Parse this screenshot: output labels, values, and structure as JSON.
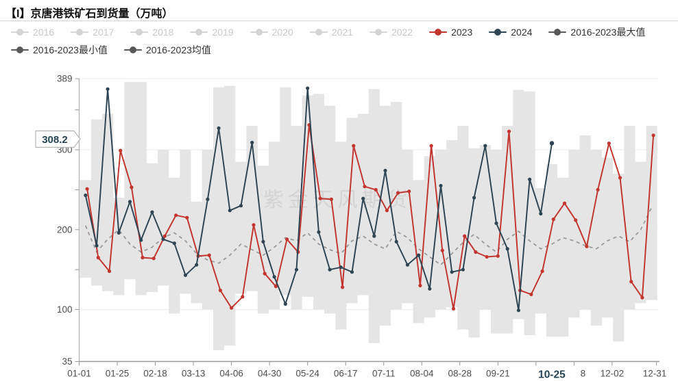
{
  "title": "【I】京唐港铁矿石到货量（万吨）",
  "watermark": "紫金天风期货",
  "colors": {
    "red_2023": "#c23531",
    "dark_2024": "#2f4554",
    "stat_grey": "#595959",
    "band_fill": "#e5e5e5",
    "mean_dash": "#9a9a9a",
    "inactive": "#d4d4d4",
    "grid": "#ebebeb",
    "axis": "#999999",
    "tick_text": "#4e4e4e",
    "pointer_text": "#274356"
  },
  "legend": {
    "items": [
      {
        "label": "2016",
        "active": false
      },
      {
        "label": "2017",
        "active": false
      },
      {
        "label": "2018",
        "active": false
      },
      {
        "label": "2019",
        "active": false
      },
      {
        "label": "2020",
        "active": false
      },
      {
        "label": "2021",
        "active": false
      },
      {
        "label": "2022",
        "active": false
      },
      {
        "label": "2023",
        "active": true,
        "color": "#c23531"
      },
      {
        "label": "2024",
        "active": true,
        "color": "#2f4554"
      },
      {
        "label": "2016-2023最大值",
        "active": true,
        "color": "#595959"
      },
      {
        "label": "2016-2023最小值",
        "active": true,
        "color": "#595959"
      },
      {
        "label": "2016-2023均值",
        "active": true,
        "color": "#595959"
      }
    ]
  },
  "axis_pointer": {
    "y_label": "308.2",
    "x_label": "10-25"
  },
  "chart_data": {
    "type": "line",
    "title": "京唐港铁矿石到货量（万吨）",
    "xlabel": "",
    "ylabel": "万吨",
    "ylim": [
      35,
      389
    ],
    "yticks": [
      35,
      100,
      200,
      300,
      389
    ],
    "y_minor_ticks": [
      150,
      250,
      350
    ],
    "grid": true,
    "legend_position": "top",
    "days_in_year": 365,
    "x_ticks": [
      {
        "day": 0,
        "label": "01-01"
      },
      {
        "day": 24,
        "label": "01-25"
      },
      {
        "day": 48,
        "label": "02-18"
      },
      {
        "day": 72,
        "label": "03-13"
      },
      {
        "day": 96,
        "label": "04-06"
      },
      {
        "day": 120,
        "label": "04-30"
      },
      {
        "day": 144,
        "label": "05-24"
      },
      {
        "day": 168,
        "label": "06-17"
      },
      {
        "day": 192,
        "label": "07-11"
      },
      {
        "day": 216,
        "label": "08-04"
      },
      {
        "day": 240,
        "label": "08-28"
      },
      {
        "day": 264,
        "label": "09-21"
      },
      {
        "day": 288,
        "label": "10-15"
      },
      {
        "day": 312,
        "label": "11-08"
      },
      {
        "day": 336,
        "label": "12-02"
      },
      {
        "day": 364,
        "label": "12-31"
      }
    ],
    "highlight": {
      "series": "2024",
      "x": "10-25",
      "y": 308.2,
      "day": 298
    },
    "series": [
      {
        "name": "2016-2023最大值",
        "kind": "band-top",
        "start_day": 4,
        "step_days": 7,
        "values": [
          262,
          338,
          345,
          240,
          385,
          385,
          283,
          300,
          265,
          300,
          235,
          300,
          378,
          380,
          285,
          330,
          280,
          310,
          378,
          330,
          368,
          370,
          355,
          310,
          340,
          345,
          376,
          355,
          360,
          300,
          262,
          292,
          300,
          312,
          330,
          302,
          306,
          300,
          330,
          375,
          373,
          252,
          282,
          265,
          300,
          318,
          300,
          290,
          270,
          330,
          285,
          330
        ]
      },
      {
        "name": "2016-2023最小值",
        "kind": "band-bottom",
        "start_day": 4,
        "step_days": 7,
        "values": [
          140,
          130,
          123,
          118,
          138,
          118,
          122,
          130,
          95,
          120,
          108,
          100,
          49,
          55,
          120,
          123,
          95,
          100,
          118,
          100,
          116,
          100,
          95,
          75,
          108,
          118,
          58,
          80,
          100,
          108,
          83,
          90,
          100,
          103,
          75,
          65,
          100,
          70,
          70,
          88,
          68,
          95,
          66,
          66,
          90,
          100,
          80,
          90,
          60,
          100,
          108,
          112
        ]
      },
      {
        "name": "2016-2023均值",
        "kind": "dashed",
        "start_day": 4,
        "step_days": 7,
        "values": [
          205,
          172,
          188,
          200,
          182,
          172,
          178,
          190,
          196,
          186,
          170,
          162,
          158,
          168,
          182,
          175,
          168,
          178,
          190,
          186,
          196,
          182,
          175,
          170,
          186,
          192,
          182,
          176,
          198,
          190,
          176,
          166,
          156,
          170,
          184,
          194,
          182,
          172,
          188,
          198,
          186,
          176,
          182,
          190,
          186,
          180,
          176,
          186,
          192,
          185,
          200,
          228
        ]
      },
      {
        "name": "2023",
        "kind": "line",
        "color": "#c23531",
        "start_day": 5,
        "step_days": 7,
        "values": [
          251,
          165,
          148,
          299,
          253,
          165,
          164,
          192,
          218,
          215,
          167,
          168,
          124,
          102,
          116,
          206,
          145,
          129,
          188,
          172,
          331,
          239,
          238,
          128,
          305,
          254,
          250,
          224,
          246,
          248,
          130,
          305,
          174,
          101,
          192,
          172,
          166,
          167,
          323,
          124,
          119,
          148,
          213,
          233,
          212,
          179,
          250,
          308,
          265,
          135,
          115,
          318
        ]
      },
      {
        "name": "2024",
        "kind": "line",
        "color": "#2f4554",
        "start_day": 4,
        "step_days": 7,
        "values": [
          243,
          180,
          376,
          196,
          235,
          187,
          222,
          188,
          183,
          143,
          156,
          238,
          327,
          224,
          230,
          309,
          185,
          141,
          107,
          150,
          377,
          197,
          150,
          153,
          147,
          239,
          192,
          274,
          185,
          156,
          168,
          126,
          255,
          147,
          150,
          240,
          305,
          208,
          176,
          99,
          263,
          220,
          308.2
        ]
      }
    ]
  }
}
